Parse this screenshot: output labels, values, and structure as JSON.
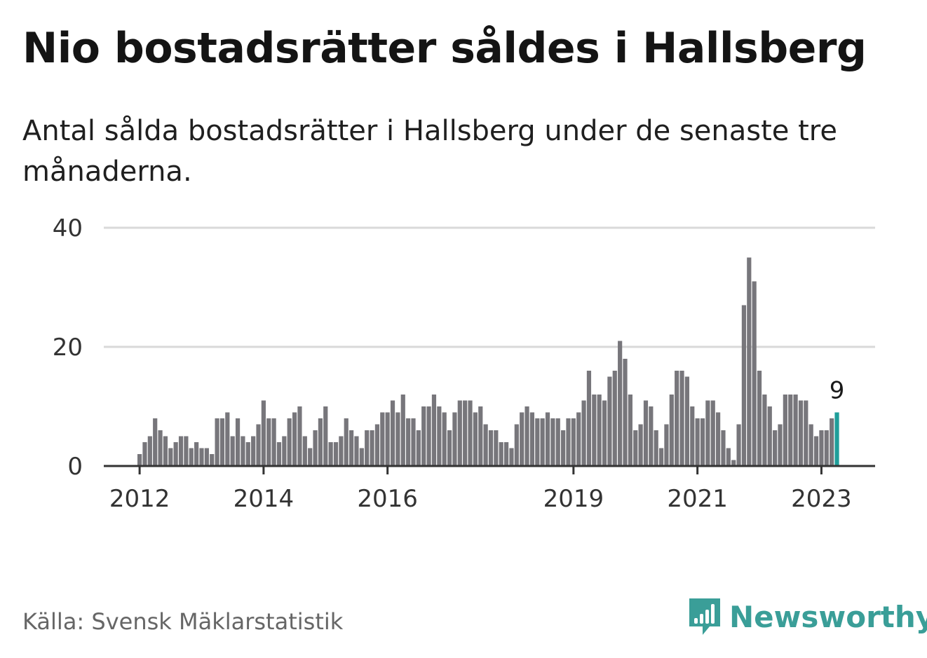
{
  "title": "Nio bostadsrätter såldes i Hallsberg",
  "subtitle": "Antal sålda bostadsrätter i Hallsberg under de senaste tre månaderna.",
  "source": "Källa: Svensk Mäklarstatistik",
  "brand": {
    "name": "Newsworthy",
    "icon": "newsworthy-logo-icon",
    "color": "#3a9e98"
  },
  "colors": {
    "bar": "#77767b",
    "highlight": "#1f9e9a",
    "grid": "#d9d9d9",
    "axis": "#333333"
  },
  "chart_data": {
    "type": "bar",
    "title": "Nio bostadsrätter såldes i Hallsberg",
    "xlabel": "",
    "ylabel": "",
    "ylim": [
      0,
      40
    ],
    "yticks": [
      0,
      20,
      40
    ],
    "ytick_labels": [
      "0",
      "20",
      "40"
    ],
    "grid": true,
    "xtick_labels": [
      "2012",
      "2014",
      "2016",
      "2019",
      "2021",
      "2023"
    ],
    "xtick_bar_index": [
      0,
      24,
      48,
      84,
      108,
      132
    ],
    "highlight_index": 135,
    "highlight_label": "9",
    "values": [
      2,
      4,
      5,
      8,
      6,
      5,
      3,
      4,
      5,
      5,
      3,
      4,
      3,
      3,
      2,
      8,
      8,
      9,
      5,
      8,
      5,
      4,
      5,
      7,
      11,
      8,
      8,
      4,
      5,
      8,
      9,
      10,
      5,
      3,
      6,
      8,
      10,
      4,
      4,
      5,
      8,
      6,
      5,
      3,
      6,
      6,
      7,
      9,
      9,
      11,
      9,
      12,
      8,
      8,
      6,
      10,
      10,
      12,
      10,
      9,
      6,
      9,
      11,
      11,
      11,
      9,
      10,
      7,
      6,
      6,
      4,
      4,
      3,
      7,
      9,
      10,
      9,
      8,
      8,
      9,
      8,
      8,
      6,
      8,
      8,
      9,
      11,
      16,
      12,
      12,
      11,
      15,
      16,
      21,
      18,
      12,
      6,
      7,
      11,
      10,
      6,
      3,
      7,
      12,
      16,
      16,
      15,
      10,
      8,
      8,
      11,
      11,
      9,
      6,
      3,
      1,
      7,
      27,
      35,
      31,
      16,
      12,
      10,
      6,
      7,
      12,
      12,
      12,
      11,
      11,
      7,
      5,
      6,
      6,
      8,
      9
    ]
  }
}
